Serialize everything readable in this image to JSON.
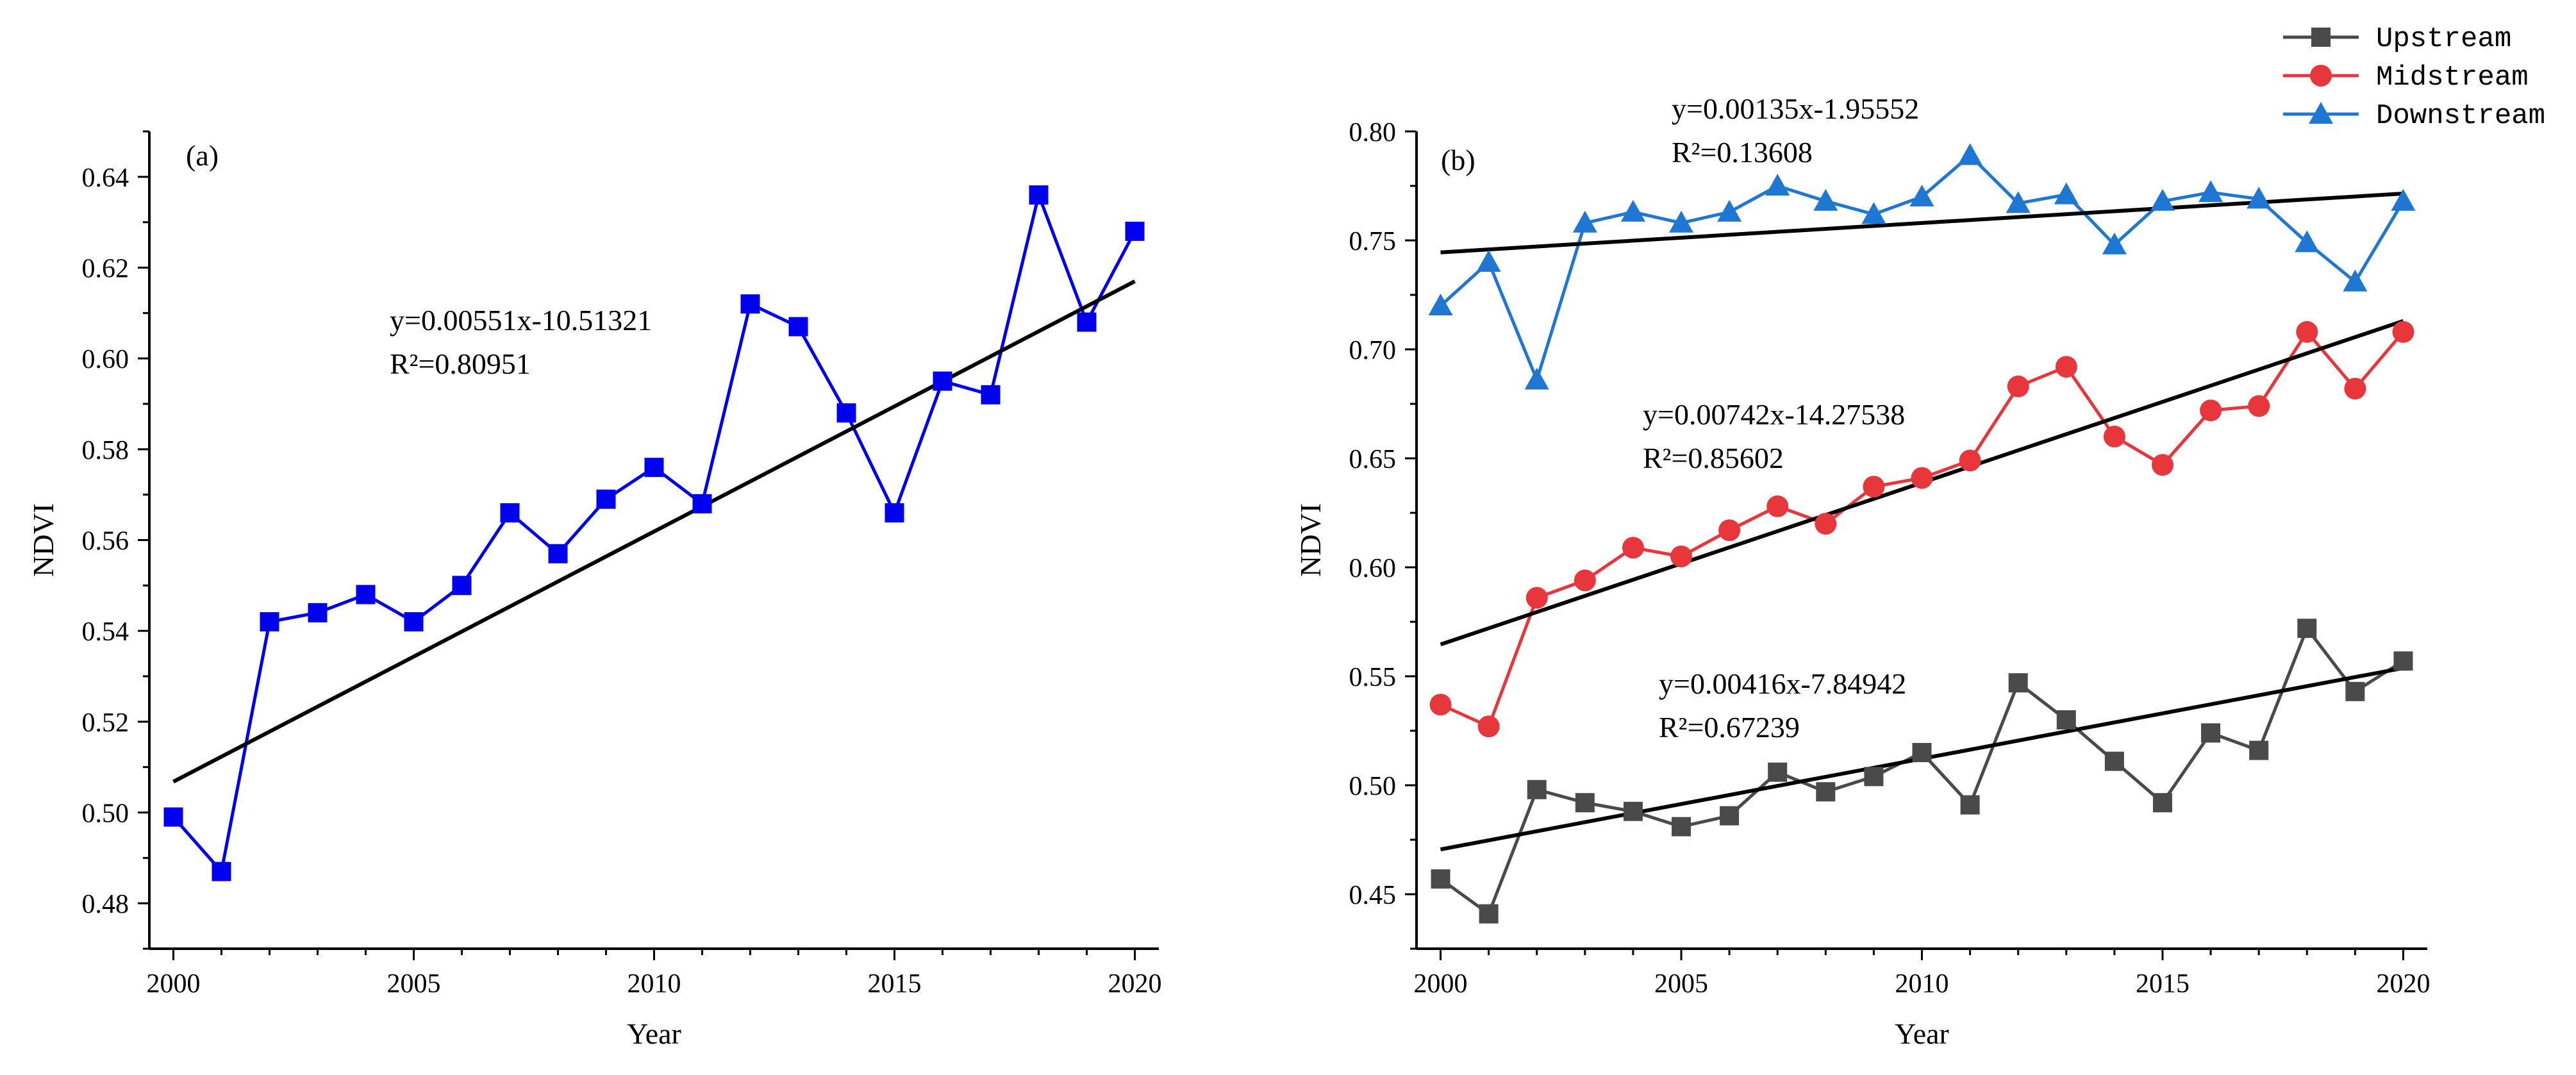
{
  "chart_data": [
    {
      "type": "line",
      "panel_label": "(a)",
      "xlabel": "Year",
      "ylabel": "NDVI",
      "xlim": [
        1999.5,
        2020.5
      ],
      "ylim": [
        0.47,
        0.65
      ],
      "x_ticks": [
        2000,
        2005,
        2010,
        2015,
        2020
      ],
      "y_ticks": [
        0.48,
        0.5,
        0.52,
        0.54,
        0.56,
        0.58,
        0.6,
        0.62,
        0.64
      ],
      "y_tick_labels": [
        "0.48",
        "0.50",
        "0.52",
        "0.54",
        "0.56",
        "0.58",
        "0.60",
        "0.62",
        "0.64"
      ],
      "x": [
        2000,
        2001,
        2002,
        2003,
        2004,
        2005,
        2006,
        2007,
        2008,
        2009,
        2010,
        2011,
        2012,
        2013,
        2014,
        2015,
        2016,
        2017,
        2018,
        2019,
        2020
      ],
      "series": [
        {
          "color": "#0000ee",
          "marker": "square",
          "values": [
            0.499,
            0.487,
            0.542,
            0.544,
            0.548,
            0.542,
            0.55,
            0.566,
            0.557,
            0.569,
            0.576,
            0.568,
            0.612,
            0.607,
            0.588,
            0.566,
            0.595,
            0.592,
            0.636,
            0.608,
            0.628
          ],
          "fit": {
            "slope": 0.00551,
            "intercept": -10.51321,
            "equation": "y=0.00551x-10.51321",
            "r2": "R²=0.80951"
          }
        }
      ]
    },
    {
      "type": "line",
      "panel_label": "(b)",
      "xlabel": "Year",
      "ylabel": "NDVI",
      "xlim": [
        1999.5,
        2020.5
      ],
      "ylim": [
        0.425,
        0.8
      ],
      "x_ticks": [
        2000,
        2005,
        2010,
        2015,
        2020
      ],
      "y_ticks": [
        0.45,
        0.5,
        0.55,
        0.6,
        0.65,
        0.7,
        0.75,
        0.8
      ],
      "y_tick_labels": [
        "0.45",
        "0.50",
        "0.55",
        "0.60",
        "0.65",
        "0.70",
        "0.75",
        "0.80"
      ],
      "legend_position": "top-right",
      "x": [
        2000,
        2001,
        2002,
        2003,
        2004,
        2005,
        2006,
        2007,
        2008,
        2009,
        2010,
        2011,
        2012,
        2013,
        2014,
        2015,
        2016,
        2017,
        2018,
        2019,
        2020
      ],
      "series": [
        {
          "name": "Upstream",
          "color": "#4a4a4a",
          "marker": "square",
          "values": [
            0.457,
            0.441,
            0.498,
            0.492,
            0.488,
            0.481,
            0.486,
            0.506,
            0.497,
            0.504,
            0.515,
            0.491,
            0.547,
            0.53,
            0.511,
            0.492,
            0.524,
            0.516,
            0.572,
            0.543,
            0.557
          ],
          "fit": {
            "slope": 0.00416,
            "intercept": -7.84942,
            "equation": "y=0.00416x-7.84942",
            "r2": "R²=0.67239"
          }
        },
        {
          "name": "Midstream",
          "color": "#e8373c",
          "marker": "circle",
          "values": [
            0.537,
            0.527,
            0.586,
            0.594,
            0.609,
            0.605,
            0.617,
            0.628,
            0.62,
            0.637,
            0.641,
            0.649,
            0.683,
            0.692,
            0.66,
            0.647,
            0.672,
            0.674,
            0.708,
            0.682,
            0.708
          ],
          "fit": {
            "slope": 0.00742,
            "intercept": -14.27538,
            "equation": "y=0.00742x-14.27538",
            "r2": "R²=0.85602"
          }
        },
        {
          "name": "Downstream",
          "color": "#1f77d4",
          "marker": "triangle",
          "values": [
            0.72,
            0.74,
            0.686,
            0.758,
            0.763,
            0.758,
            0.763,
            0.775,
            0.768,
            0.762,
            0.77,
            0.789,
            0.767,
            0.771,
            0.748,
            0.768,
            0.772,
            0.769,
            0.749,
            0.731,
            0.768
          ],
          "fit": {
            "slope": 0.00135,
            "intercept": -1.95552,
            "equation": "y=0.00135x-1.95552",
            "r2": "R²=0.13608"
          }
        }
      ]
    }
  ]
}
